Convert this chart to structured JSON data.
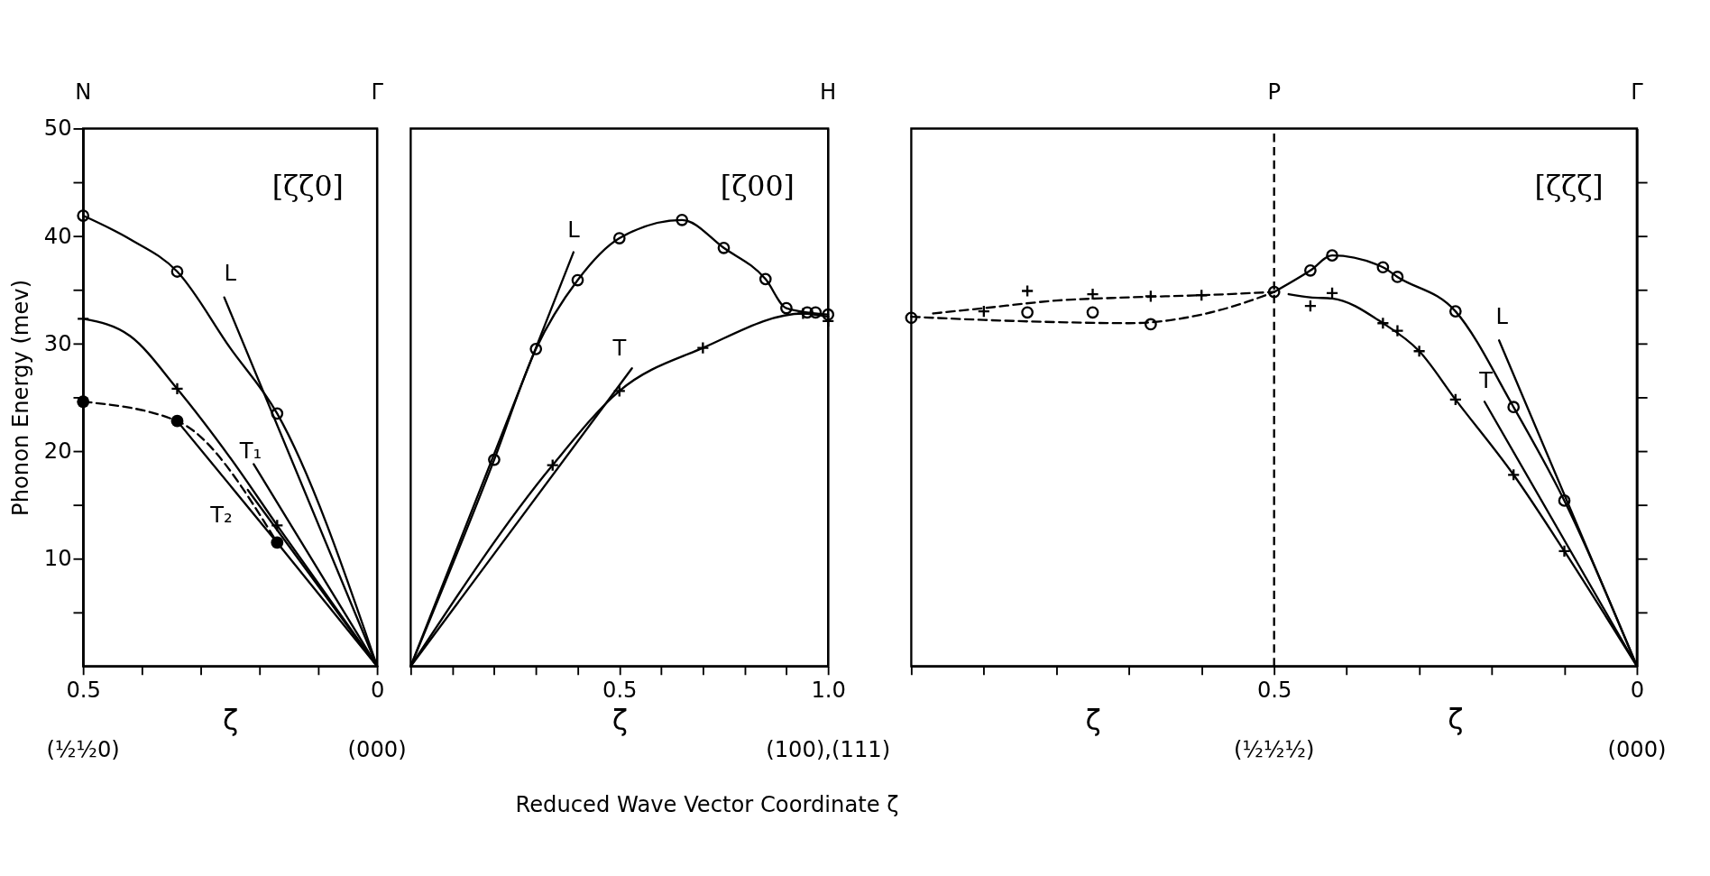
{
  "chart_data": [
    {
      "type": "line",
      "ylabel": "Phonon Energy (mev)",
      "xlabel": "ζ",
      "xlim": [
        0.5,
        0
      ],
      "ylim": [
        0,
        50
      ],
      "xticks": [
        0.5,
        {
          "value": 0.4,
          "label": null
        },
        {
          "value": 0.3,
          "label": null
        },
        {
          "value": 0.2,
          "label": null
        },
        {
          "value": 0.1,
          "label": null
        },
        0
      ],
      "yticks": [
        {
          "value": 5,
          "label": null
        },
        10,
        {
          "value": 15,
          "label": null
        },
        20,
        {
          "value": 25,
          "label": null
        },
        30,
        {
          "value": 35,
          "label": null
        },
        40,
        {
          "value": 45,
          "label": null
        },
        50
      ],
      "ref_lines": [
        {
          "axis": "x",
          "value": 0.5,
          "label": "N",
          "color": "#000000"
        },
        {
          "axis": "x",
          "value": 0,
          "label": "Γ",
          "color": "#000000"
        }
      ],
      "series": [
        {
          "type": "scatter",
          "marker": "circle",
          "color": "#000000",
          "x": [
            0.5,
            0.34,
            0.17
          ],
          "values": [
            41.9,
            36.7,
            23.5
          ]
        },
        {
          "type": "scatter",
          "marker": "cross",
          "color": "#000000",
          "x": [
            0.5,
            0.34,
            0.17
          ],
          "values": [
            32.3,
            25.8,
            13.1
          ]
        },
        {
          "marker": "circle",
          "line_style": "dashed",
          "color": "#000000",
          "x": [
            0.5,
            0.34,
            0.17
          ],
          "values": [
            24.6,
            22.8,
            11.5
          ]
        },
        {
          "color": "#000000",
          "x": [
            0.5,
            0.42,
            0.34,
            0.25,
            0.17,
            0
          ],
          "values": [
            41.9,
            39.7,
            36.7,
            29.6,
            23.5,
            0
          ]
        },
        {
          "color": "#000000",
          "x": [
            0.5,
            0.42,
            0.34,
            0.25,
            0.17,
            0
          ],
          "values": [
            32.3,
            30.7,
            25.8,
            19.4,
            13.1,
            0
          ]
        },
        {
          "color": "#000000",
          "x": [
            0.34,
            0.17,
            0
          ],
          "values": [
            22.8,
            11.5,
            0
          ]
        },
        {
          "color": "#000000",
          "x": [
            0.26,
            0
          ],
          "values": [
            34.3,
            0
          ]
        },
        {
          "color": "#000000",
          "x": [
            0.21,
            0
          ],
          "values": [
            18.8,
            0
          ]
        },
        {
          "color": "#000000",
          "x": [
            0.22,
            0
          ],
          "values": [
            16.4,
            0
          ]
        }
      ],
      "annotations": [
        "[ζζ0]",
        "L",
        "T₁",
        "T₂",
        "(½½0)",
        "(000)"
      ]
    },
    {
      "type": "line",
      "xlabel": "ζ",
      "xlim": [
        0,
        1
      ],
      "ylim": [
        0,
        50
      ],
      "tick_labels": "x",
      "xticks": [
        {
          "value": 0,
          "label": null
        },
        {
          "value": 0.1,
          "label": null
        },
        {
          "value": 0.2,
          "label": null
        },
        {
          "value": 0.3,
          "label": null
        },
        {
          "value": 0.4,
          "label": null
        },
        0.5,
        {
          "value": 0.6,
          "label": null
        },
        {
          "value": 0.7,
          "label": null
        },
        {
          "value": 0.8,
          "label": null
        },
        {
          "value": 0.9,
          "label": null
        },
        {
          "value": 1,
          "label": "1.0"
        }
      ],
      "ref_lines": [
        {
          "axis": "x",
          "value": 1,
          "label": "H",
          "color": "#000000"
        }
      ],
      "series": [
        {
          "type": "scatter",
          "marker": "circle",
          "color": "#000000",
          "x": [
            0.2,
            0.3,
            0.4,
            0.5,
            0.65,
            0.75,
            0.85,
            0.9,
            0.95,
            0.97,
            1.0
          ],
          "values": [
            19.2,
            29.5,
            35.9,
            39.8,
            41.5,
            38.9,
            36.0,
            33.3,
            32.9,
            32.9,
            32.7
          ]
        },
        {
          "type": "scatter",
          "marker": "cross",
          "color": "#000000",
          "x": [
            0.34,
            0.5,
            0.7,
            0.94,
            1.0
          ],
          "values": [
            18.7,
            25.6,
            29.6,
            32.8,
            32.1
          ]
        },
        {
          "color": "#000000",
          "x": [
            0,
            0.2,
            0.3,
            0.4,
            0.5,
            0.65,
            0.75,
            0.85,
            0.9,
            1.0
          ],
          "values": [
            0,
            19.2,
            29.5,
            35.9,
            39.8,
            41.5,
            38.9,
            36.0,
            33.3,
            32.7
          ]
        },
        {
          "color": "#000000",
          "x": [
            0,
            0.34,
            0.5,
            0.7,
            0.94,
            1.0
          ],
          "values": [
            0,
            18.7,
            25.6,
            29.6,
            32.8,
            32.5
          ]
        },
        {
          "color": "#000000",
          "x": [
            0,
            0.39
          ],
          "values": [
            0,
            38.5
          ]
        },
        {
          "color": "#000000",
          "x": [
            0,
            0.53
          ],
          "values": [
            0,
            27.7
          ]
        }
      ],
      "annotations": [
        "[ζ00]",
        "Reduced Wave Vector Coordinate ζ",
        "L",
        "T",
        "(100),(111)"
      ]
    },
    {
      "type": "line",
      "xlabel": "ζ",
      "xlim": [
        1,
        0
      ],
      "ylim": [
        0,
        50
      ],
      "tick_labels": "x",
      "xticks": [
        {
          "value": 1,
          "label": null
        },
        {
          "value": 0.9,
          "label": null
        },
        {
          "value": 0.8,
          "label": null
        },
        {
          "value": 0.7,
          "label": null
        },
        {
          "value": 0.6,
          "label": null
        },
        0.5,
        {
          "value": 0.4,
          "label": null
        },
        {
          "value": 0.3,
          "label": null
        },
        {
          "value": 0.2,
          "label": null
        },
        {
          "value": 0.1,
          "label": null
        },
        0
      ],
      "yticks": [
        {
          "value": 5,
          "label": null
        },
        {
          "value": 10,
          "label": null
        },
        {
          "value": 15,
          "label": null
        },
        {
          "value": 20,
          "label": null
        },
        {
          "value": 25,
          "label": null
        },
        {
          "value": 30,
          "label": null
        },
        {
          "value": 35,
          "label": null
        },
        {
          "value": 40,
          "label": null
        },
        {
          "value": 45,
          "label": null
        }
      ],
      "ref_lines": [
        {
          "axis": "x",
          "value": 0.5,
          "label": "P",
          "line_style": "dashed",
          "color": "#000000"
        },
        {
          "axis": "x",
          "value": 0,
          "label": "Γ",
          "color": "#000000"
        }
      ],
      "series": [
        {
          "line_style": "dashed",
          "color": "#000000",
          "x": [
            0.97,
            0.9,
            0.8,
            0.7,
            0.6,
            0.5
          ],
          "values": [
            32.8,
            33.3,
            34.0,
            34.3,
            34.5,
            34.8
          ]
        },
        {
          "line_style": "dashed",
          "color": "#000000",
          "x": [
            1,
            0.9,
            0.8,
            0.7,
            0.6,
            0.55,
            0.5
          ],
          "values": [
            32.5,
            32.2,
            32.0,
            31.9,
            32.7,
            33.6,
            34.8
          ]
        },
        {
          "type": "scatter",
          "marker": "cross",
          "color": "#000000",
          "x": [
            0.9,
            0.84,
            0.75,
            0.67,
            0.6,
            0.45,
            0.42,
            0.35,
            0.33,
            0.3,
            0.25,
            0.17,
            0.1
          ],
          "values": [
            33.0,
            34.9,
            34.6,
            34.4,
            34.5,
            33.5,
            34.7,
            31.9,
            31.2,
            29.3,
            24.8,
            17.8,
            10.7
          ]
        },
        {
          "type": "scatter",
          "marker": "circle",
          "color": "#000000",
          "x": [
            1.0,
            0.84,
            0.75,
            0.67,
            0.5,
            0.45,
            0.42,
            0.35,
            0.33,
            0.25,
            0.17,
            0.1
          ],
          "values": [
            32.4,
            32.9,
            32.9,
            31.8,
            34.8,
            36.8,
            38.2,
            37.1,
            36.2,
            33.0,
            24.1,
            15.4
          ]
        },
        {
          "color": "#000000",
          "x": [
            0.5,
            0.45,
            0.42,
            0.35,
            0.33,
            0.25,
            0.17,
            0.1,
            0
          ],
          "values": [
            34.8,
            36.8,
            38.2,
            37.1,
            36.2,
            33.0,
            24.1,
            15.4,
            0
          ]
        },
        {
          "color": "#000000",
          "x": [
            0.48,
            0.45,
            0.42,
            0.35,
            0.3,
            0.25,
            0.17,
            0.1,
            0
          ],
          "values": [
            34.6,
            34.3,
            34.2,
            31.9,
            29.3,
            24.8,
            17.8,
            10.7,
            0
          ]
        },
        {
          "color": "#000000",
          "x": [
            0.19,
            0
          ],
          "values": [
            30.3,
            0
          ]
        },
        {
          "color": "#000000",
          "x": [
            0.21,
            0
          ],
          "values": [
            24.6,
            0
          ]
        }
      ],
      "annotations": [
        "ζ",
        "[ζζζ]",
        "L",
        "T",
        "(½½½)",
        "(000)"
      ]
    }
  ]
}
